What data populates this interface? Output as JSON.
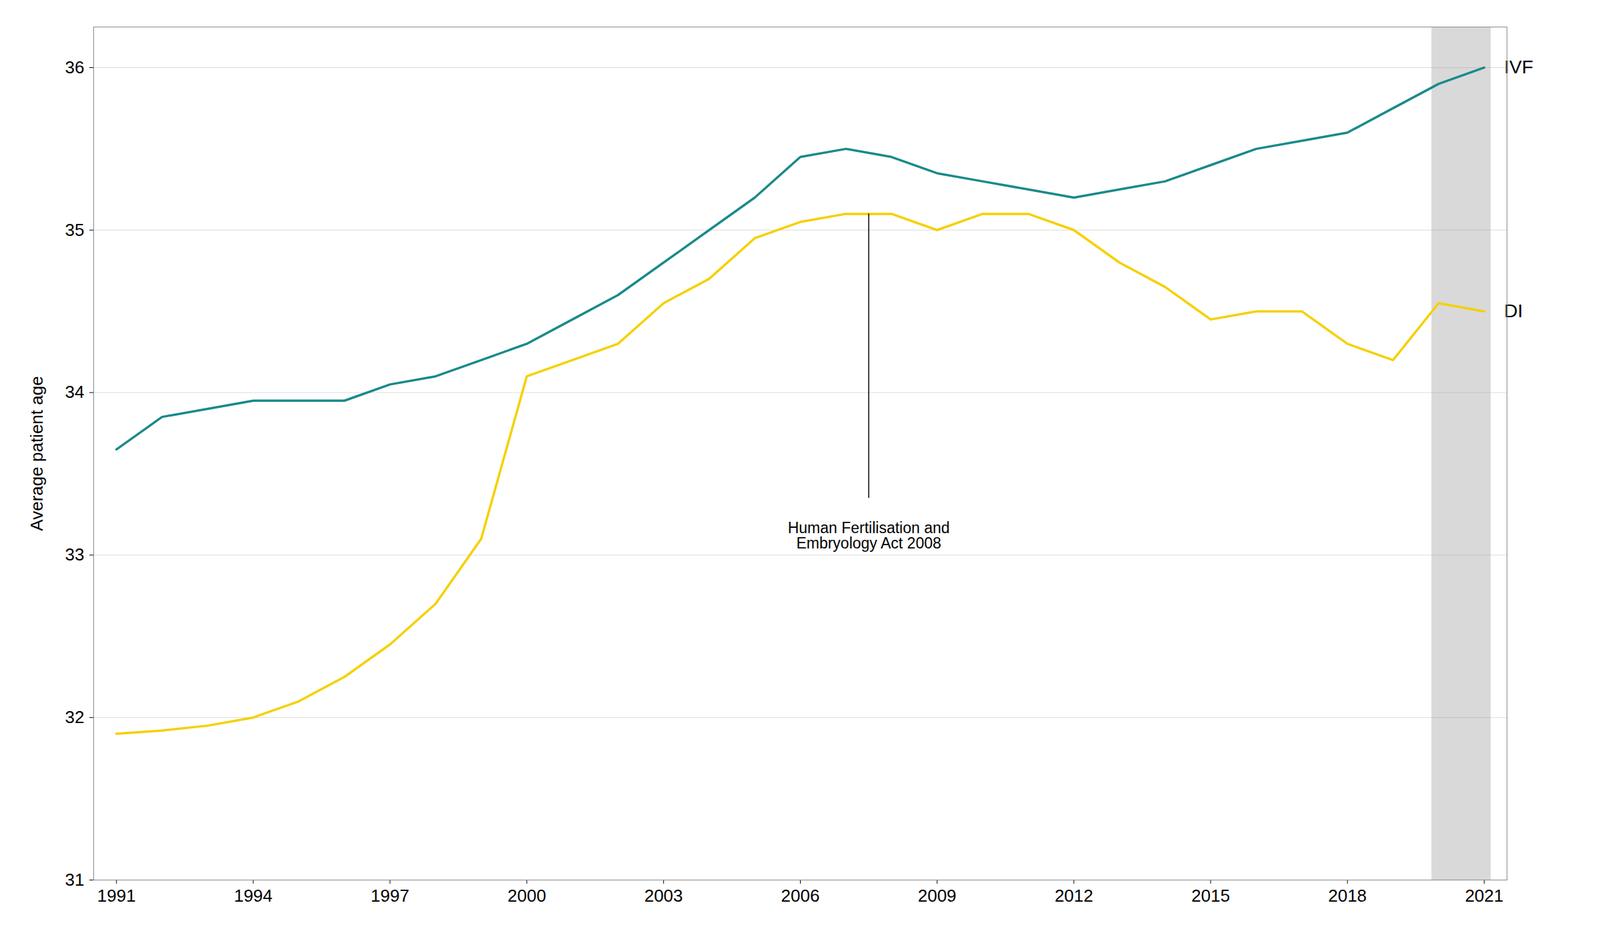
{
  "chart_data": {
    "type": "line",
    "ylabel": "Average patient age",
    "x": [
      1991,
      1992,
      1993,
      1994,
      1995,
      1996,
      1997,
      1998,
      1999,
      2000,
      2001,
      2002,
      2003,
      2004,
      2005,
      2006,
      2007,
      2008,
      2009,
      2010,
      2011,
      2012,
      2013,
      2014,
      2015,
      2016,
      2017,
      2018,
      2019,
      2020,
      2021
    ],
    "series": [
      {
        "name": "IVF",
        "color": "#1a8a8a",
        "values": [
          33.65,
          33.85,
          33.9,
          33.95,
          33.95,
          33.95,
          34.05,
          34.1,
          34.2,
          34.3,
          34.45,
          34.6,
          34.8,
          35.0,
          35.2,
          35.45,
          35.5,
          35.45,
          35.35,
          35.3,
          35.25,
          35.2,
          35.25,
          35.3,
          35.4,
          35.5,
          35.55,
          35.6,
          35.75,
          35.9,
          36.0
        ]
      },
      {
        "name": "DI",
        "color": "#f5d000",
        "values": [
          31.9,
          31.92,
          31.95,
          32.0,
          32.1,
          32.25,
          32.45,
          32.7,
          33.1,
          34.1,
          34.2,
          34.3,
          34.55,
          34.7,
          34.95,
          35.05,
          35.1,
          35.1,
          35.0,
          35.1,
          35.1,
          35.0,
          34.8,
          34.65,
          34.45,
          34.5,
          34.5,
          34.3,
          34.2,
          34.55,
          34.5
        ]
      }
    ],
    "annotations": [
      {
        "text": "Human Fertilisation and\nEmbryology Act 2008",
        "x": 2007.5,
        "y": 33.2,
        "line": [
          33.35,
          35.1
        ]
      }
    ],
    "shade": {
      "x": [
        2019.85,
        2021.15
      ],
      "color": "#d9d9d9"
    },
    "xlim": [
      1990.5,
      2021.5
    ],
    "xticks": [
      1991,
      1994,
      1997,
      2000,
      2003,
      2006,
      2009,
      2012,
      2015,
      2018,
      2021
    ],
    "ylim": [
      31.0,
      36.25
    ],
    "yticks": [
      31,
      32,
      33,
      34,
      35,
      36
    ],
    "grid": true
  }
}
